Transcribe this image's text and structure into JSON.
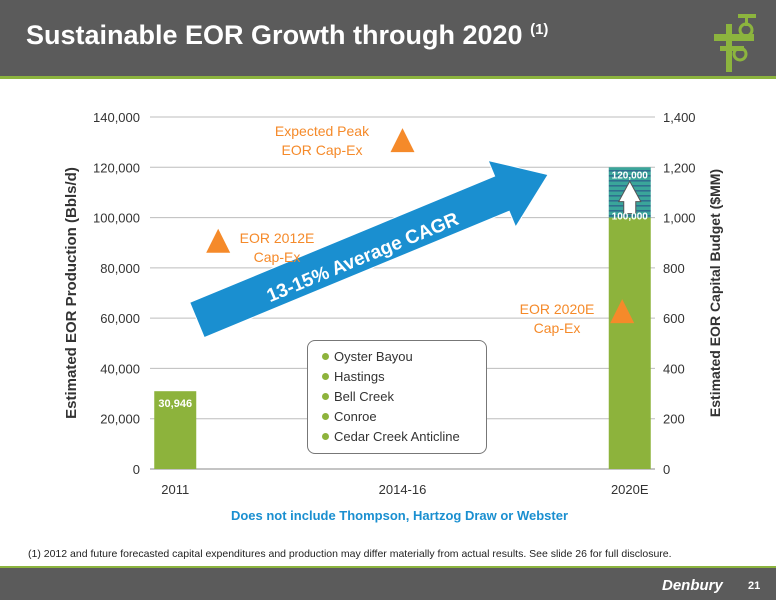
{
  "header": {
    "title": "Sustainable EOR Growth through 2020",
    "title_superscript": "(1)",
    "logo_icon": "oil-well-valve-icon"
  },
  "chart_data": {
    "type": "bar",
    "categories": [
      "2011",
      "2014-16",
      "2020E"
    ],
    "ylabel": "Estimated EOR Production (Bbls/d)",
    "y2label": "Estimated EOR Capital Budget ($MM)",
    "ylim": [
      0,
      140000
    ],
    "y2lim": [
      0,
      1400
    ],
    "yticks": [
      0,
      20000,
      40000,
      60000,
      80000,
      100000,
      120000,
      140000
    ],
    "ytick_labels": [
      "0",
      "20,000",
      "40,000",
      "60,000",
      "80,000",
      "100,000",
      "120,000",
      "140,000"
    ],
    "y2ticks": [
      0,
      200,
      400,
      600,
      800,
      1000,
      1200,
      1400
    ],
    "y2tick_labels": [
      "0",
      "200",
      "400",
      "600",
      "800",
      "1,000",
      "1,200",
      "1,400"
    ],
    "bars": [
      {
        "category": "2011",
        "value": 30946,
        "label": "30,946"
      },
      {
        "category": "2020E",
        "value": 100000,
        "label": "100,000",
        "range_top": 120000,
        "range_label": "120,000"
      }
    ],
    "capex_markers": [
      {
        "position": 1.35,
        "value": 900,
        "label_lines": [
          "EOR 2012E",
          "Cap-Ex"
        ]
      },
      {
        "position": 5,
        "value": 1300,
        "label_lines": [
          "Expected Peak",
          "EOR Cap-Ex"
        ]
      },
      {
        "position": 9.35,
        "value": 620,
        "label_lines": [
          "EOR 2020E",
          "Cap-Ex"
        ]
      }
    ],
    "growth_arrow_label": "13-15% Average CAGR",
    "legend": [
      "Oyster Bayou",
      "Hastings",
      "Bell Creek",
      "Conroe",
      "Cedar Creek Anticline"
    ],
    "xnote": "Does not include Thompson, Hartzog Draw or Webster",
    "colors": {
      "bar": "#8db33c",
      "range_teal": "#3aa59a",
      "range_stripe": "#2f6e8e",
      "marker": "#f58a2a",
      "arrow": "#1a8fd0",
      "note": "#1a8fd0",
      "grid": "#bdbdbd"
    }
  },
  "footnote": "(1) 2012 and future forecasted capital expenditures and production may differ materially from actual results.  See slide 26 for full disclosure.",
  "footer": {
    "brand": "Denbury",
    "page_number": "21"
  }
}
